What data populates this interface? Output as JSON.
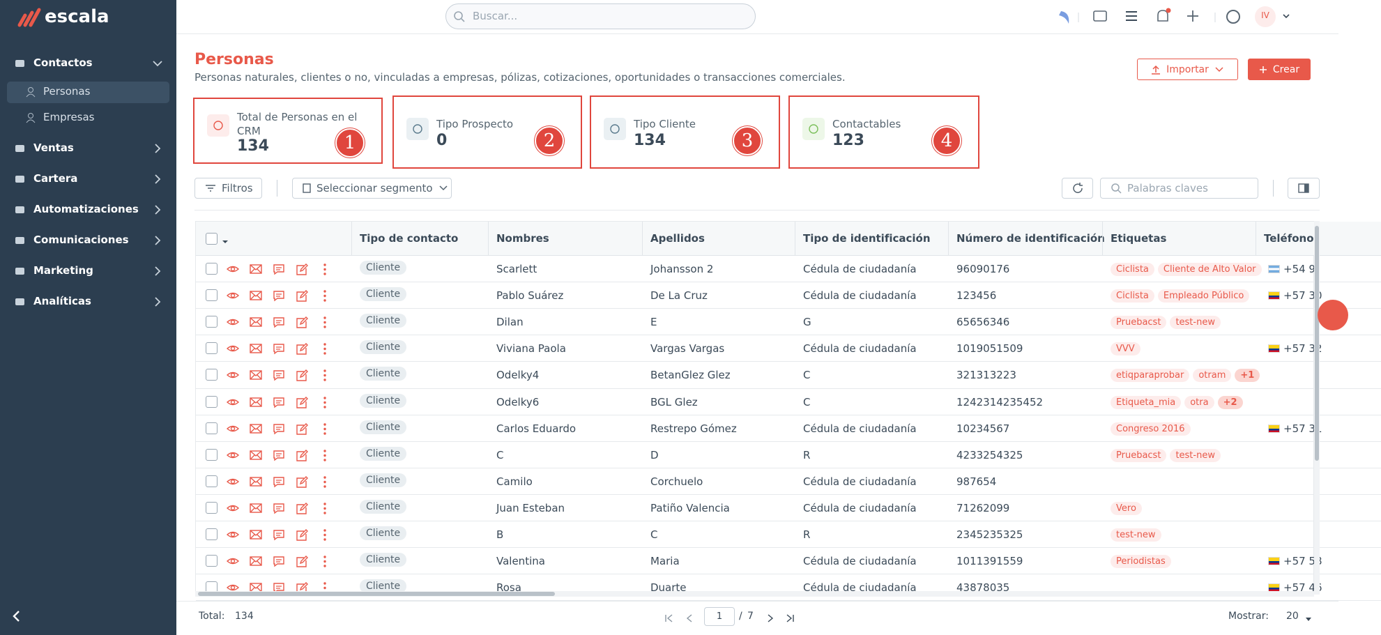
{
  "brand": "escala",
  "search": "Buscar...",
  "avatar": "IV",
  "sidebar": {
    "items": [
      {
        "label": "Contactos",
        "children": [
          "Personas",
          "Empresas"
        ]
      },
      {
        "label": "Ventas"
      },
      {
        "label": "Cartera"
      },
      {
        "label": "Automatizaciones"
      },
      {
        "label": "Comunicaciones"
      },
      {
        "label": "Marketing"
      },
      {
        "label": "Analíticas"
      }
    ]
  },
  "page": {
    "title": "Personas",
    "subtitle": "Personas naturales, clientes o no, vinculadas a empresas, pólizas, cotizaciones, oportunidades o transacciones comerciales.",
    "import": "Importar",
    "create": "Crear"
  },
  "cards": [
    {
      "label": "Total de Personas en el CRM",
      "value": 134,
      "badge": 1
    },
    {
      "label": "Tipo Prospecto",
      "value": 0,
      "badge": 2
    },
    {
      "label": "Tipo Cliente",
      "value": 134,
      "badge": 3
    },
    {
      "label": "Contactables",
      "value": 123,
      "badge": 4
    }
  ],
  "toolbar": {
    "filters": "Filtros",
    "segment": "Seleccionar segmento",
    "keywords": "Palabras claves"
  },
  "table": {
    "columns": [
      "Tipo de contacto",
      "Nombres",
      "Apellidos",
      "Tipo de identificación",
      "Número de identificación",
      "Etiquetas",
      "Teléfono"
    ],
    "rows": [
      [
        "Cliente",
        "Scarlett",
        "Johansson 2",
        "Cédula de ciudadanía",
        "96090176",
        [
          "Ciclista",
          "Cliente de Alto Valor"
        ],
        "+54 9"
      ],
      [
        "Cliente",
        "Pablo Suárez",
        "De La Cruz",
        "Cédula de ciudadanía",
        "123456",
        [
          "Ciclista",
          "Empleado Público"
        ],
        "+57 30"
      ],
      [
        "Cliente",
        "Dilan",
        "E",
        "G",
        "65656346",
        [
          "Pruebacst",
          "test-new"
        ],
        null
      ],
      [
        "Cliente",
        "Viviana Paola",
        "Vargas Vargas",
        "Cédula de ciudadanía",
        "1019051509",
        [
          "VVV"
        ],
        "+57 32"
      ],
      [
        "Cliente",
        "Odelky4",
        "BetanGlez Glez",
        "C",
        "321313223",
        [
          "etiqparaprobar",
          "otram",
          "+1"
        ],
        null
      ],
      [
        "Cliente",
        "Odelky6",
        "BGL Glez",
        "C",
        "1242314235452",
        [
          "Etiqueta_mia",
          "otra",
          "+2"
        ],
        null
      ],
      [
        "Cliente",
        "Carlos Eduardo",
        "Restrepo Gómez",
        "Cédula de ciudadanía",
        "10234567",
        [
          "Congreso 2016"
        ],
        "+57 31"
      ],
      [
        "Cliente",
        "C",
        "D",
        "R",
        "4233254325",
        [
          "Pruebacst",
          "test-new"
        ],
        null
      ],
      [
        "Cliente",
        "Camilo",
        "Corchuelo",
        "Cédula de ciudadanía",
        "987654",
        [],
        null
      ],
      [
        "Cliente",
        "Juan Esteban",
        "Patiño Valencia",
        "Cédula de ciudadanía",
        "71262099",
        [
          "Vero"
        ],
        null
      ],
      [
        "Cliente",
        "B",
        "C",
        "R",
        "2345235325",
        [
          "test-new"
        ],
        null
      ],
      [
        "Cliente",
        "Valentina",
        "Maria",
        "Cédula de ciudadanía",
        "1011391559",
        [
          "Periodistas"
        ],
        "+57 58"
      ],
      [
        "Cliente",
        "Rosa",
        "Duarte",
        "Cédula de ciudadanía",
        "43878035",
        [],
        "+57 46"
      ]
    ]
  },
  "footer": {
    "total_label": "Total:",
    "total": 134,
    "page": 1,
    "page_separator": "/",
    "pages": 7,
    "show_label": "Mostrar:",
    "show": 20
  }
}
